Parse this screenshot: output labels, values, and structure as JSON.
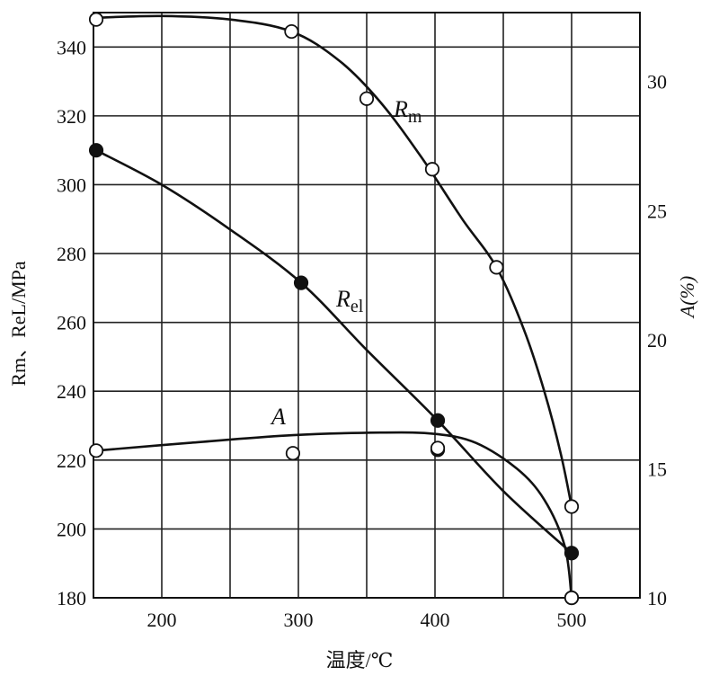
{
  "chart_data": {
    "type": "line",
    "xlabel": "温度/℃",
    "ylabel_left": "Rm、ReL/MPa",
    "ylabel_right": "A(%)",
    "xlim": [
      150,
      550
    ],
    "ylim_left": [
      180,
      350
    ],
    "ylim_right": [
      10,
      32.67
    ],
    "x_ticks": [
      200,
      300,
      400,
      500
    ],
    "y_left_ticks": [
      180,
      200,
      220,
      240,
      260,
      280,
      300,
      320,
      340
    ],
    "y_right_ticks": [
      10,
      15,
      20,
      25,
      30
    ],
    "grid": true,
    "series": [
      {
        "name": "Rm",
        "name_main": "R",
        "name_sub": "m",
        "axis": "left",
        "marker": "open-circle",
        "points": [
          [
            152,
            348
          ],
          [
            295,
            344.5
          ],
          [
            350,
            325
          ],
          [
            398,
            304.5
          ],
          [
            445,
            276
          ],
          [
            500,
            206.5
          ]
        ],
        "curve": [
          [
            152,
            348.5
          ],
          [
            200,
            349
          ],
          [
            250,
            348
          ],
          [
            295,
            344.5
          ],
          [
            330,
            336
          ],
          [
            360,
            324
          ],
          [
            390,
            308
          ],
          [
            420,
            290
          ],
          [
            445,
            276
          ],
          [
            465,
            258
          ],
          [
            480,
            240
          ],
          [
            492,
            222
          ],
          [
            500,
            206.5
          ]
        ]
      },
      {
        "name": "Rel",
        "name_main": "R",
        "name_sub": "el",
        "axis": "left",
        "marker": "filled-circle",
        "points": [
          [
            152,
            310
          ],
          [
            302,
            271.5
          ],
          [
            402,
            231.5
          ],
          [
            402,
            223
          ],
          [
            500,
            193
          ],
          [
            500,
            180
          ]
        ],
        "curve": [
          [
            152,
            310
          ],
          [
            200,
            300
          ],
          [
            250,
            287
          ],
          [
            302,
            271.5
          ],
          [
            350,
            252
          ],
          [
            402,
            231.5
          ],
          [
            450,
            211
          ],
          [
            500,
            193
          ]
        ]
      },
      {
        "name": "A",
        "axis": "right",
        "marker": "open-circle",
        "points": [
          [
            152,
            15.7
          ],
          [
            296,
            15.6
          ],
          [
            402,
            15.8
          ],
          [
            500,
            10.0
          ]
        ],
        "curve": [
          [
            152,
            15.7
          ],
          [
            220,
            16.0
          ],
          [
            296,
            16.3
          ],
          [
            360,
            16.4
          ],
          [
            400,
            16.35
          ],
          [
            430,
            16.0
          ],
          [
            460,
            15.0
          ],
          [
            480,
            13.8
          ],
          [
            495,
            12.0
          ],
          [
            500,
            10.0
          ]
        ]
      }
    ]
  }
}
